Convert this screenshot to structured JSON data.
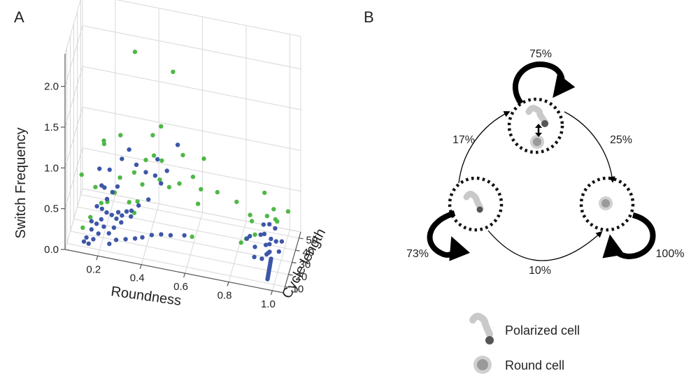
{
  "panel_a": {
    "letter": "A",
    "chart_data": {
      "type": "scatter",
      "dimensions": 3,
      "xlabel": "Roundness",
      "ylabel": "Cycle length",
      "zlabel": "Switch Frequency",
      "xlim": [
        0.05,
        1.05
      ],
      "ylim": [
        5,
        55
      ],
      "zlim": [
        0,
        2.4
      ],
      "x_ticks": [
        "0.2",
        "0.4",
        "0.6",
        "0.8",
        "1.0"
      ],
      "y_ticks": [
        "10",
        "20",
        "30",
        "40",
        "50"
      ],
      "z_ticks": [
        "0.0",
        "0.5",
        "1.0",
        "1.5",
        "2.0"
      ],
      "grid": true,
      "colors": {
        "green": "#4fb848",
        "blue": "#3d56a8"
      },
      "series": [
        {
          "color": "green",
          "points": [
            [
              0.33,
              30,
              2.2
            ],
            [
              0.5,
              33,
              2.0
            ],
            [
              0.11,
              15,
              0.8
            ],
            [
              0.22,
              10,
              1.35
            ],
            [
              0.21,
              17,
              1.2
            ],
            [
              0.28,
              20,
              1.3
            ],
            [
              0.42,
              25,
              1.3
            ],
            [
              0.45,
              30,
              1.35
            ],
            [
              0.43,
              22,
              1.1
            ],
            [
              0.46,
              20,
              0.85
            ],
            [
              0.38,
              20,
              0.75
            ],
            [
              0.33,
              28,
              0.75
            ],
            [
              0.55,
              30,
              1.05
            ],
            [
              0.63,
              40,
              0.9
            ],
            [
              0.55,
              20,
              0.85
            ],
            [
              0.58,
              40,
              0.65
            ],
            [
              0.62,
              38,
              0.55
            ],
            [
              0.7,
              35,
              0.6
            ],
            [
              0.38,
              30,
              0.9
            ],
            [
              0.27,
              25,
              0.7
            ],
            [
              0.32,
              20,
              0.5
            ],
            [
              0.35,
              25,
              0.45
            ],
            [
              0.2,
              15,
              0.5
            ],
            [
              0.17,
              17,
              0.65
            ],
            [
              0.25,
              22,
              0.55
            ],
            [
              0.22,
              20,
              0.45
            ],
            [
              0.5,
              22,
              0.75
            ],
            [
              0.45,
              32,
              0.9
            ],
            [
              0.9,
              45,
              0.55
            ],
            [
              0.95,
              40,
              0.45
            ],
            [
              0.92,
              40,
              0.35
            ],
            [
              0.95,
              45,
              0.25
            ],
            [
              0.85,
              35,
              0.4
            ],
            [
              0.78,
              40,
              0.45
            ],
            [
              0.88,
              30,
              0.25
            ],
            [
              0.84,
              30,
              0.18
            ],
            [
              1.0,
              50,
              0.3
            ],
            [
              0.6,
              25,
              0.15
            ],
            [
              0.82,
              28,
              0.15
            ],
            [
              0.95,
              50,
              0.15
            ],
            [
              0.85,
              40,
              0.25
            ],
            [
              0.6,
              42,
              0.3
            ],
            [
              0.34,
              22,
              0.35
            ],
            [
              0.15,
              15,
              0.3
            ],
            [
              0.12,
              12,
              0.2
            ]
          ]
        },
        {
          "color": "blue",
          "points": [
            [
              0.16,
              12,
              0.2
            ],
            [
              0.18,
              14,
              0.25
            ],
            [
              0.2,
              15,
              0.3
            ],
            [
              0.22,
              18,
              0.35
            ],
            [
              0.19,
              13,
              0.15
            ],
            [
              0.17,
              11,
              0.1
            ],
            [
              0.21,
              16,
              0.2
            ],
            [
              0.24,
              20,
              0.3
            ],
            [
              0.26,
              21,
              0.25
            ],
            [
              0.15,
              10,
              0.05
            ],
            [
              0.23,
              18,
              0.1
            ],
            [
              0.25,
              20,
              0.15
            ],
            [
              0.28,
              22,
              0.2
            ],
            [
              0.3,
              25,
              0.3
            ],
            [
              0.32,
              25,
              0.25
            ],
            [
              0.27,
              20,
              0.35
            ],
            [
              0.2,
              17,
              0.4
            ],
            [
              0.18,
              15,
              0.45
            ],
            [
              0.22,
              19,
              0.5
            ],
            [
              0.24,
              22,
              0.55
            ],
            [
              0.26,
              24,
              0.6
            ],
            [
              0.21,
              18,
              0.65
            ],
            [
              0.2,
              16,
              0.7
            ],
            [
              0.19,
              16,
              0.9
            ],
            [
              0.23,
              20,
              0.85
            ],
            [
              0.28,
              24,
              0.95
            ],
            [
              0.31,
              26,
              1.05
            ],
            [
              0.34,
              28,
              0.85
            ],
            [
              0.38,
              30,
              0.75
            ],
            [
              0.42,
              32,
              0.7
            ],
            [
              0.45,
              30,
              0.65
            ],
            [
              0.4,
              25,
              0.5
            ],
            [
              0.36,
              22,
              0.45
            ],
            [
              0.33,
              20,
              0.4
            ],
            [
              0.29,
              18,
              0.35
            ],
            [
              0.44,
              26,
              1.0
            ],
            [
              0.48,
              28,
              0.85
            ],
            [
              0.14,
              10,
              0.12
            ],
            [
              0.13,
              9,
              0.08
            ],
            [
              0.16,
              12,
              0.3
            ],
            [
              0.38,
              20,
              0.1
            ],
            [
              0.42,
              22,
              0.12
            ],
            [
              0.46,
              24,
              0.12
            ],
            [
              0.5,
              26,
              0.1
            ],
            [
              0.56,
              28,
              0.1
            ],
            [
              0.31,
              16,
              0.1
            ],
            [
              0.35,
              18,
              0.1
            ],
            [
              0.27,
              14,
              0.1
            ],
            [
              0.24,
              13,
              0.05
            ],
            [
              0.52,
              34,
              1.1
            ],
            [
              0.97,
              10,
              0.05
            ],
            [
              0.97,
              11,
              0.06
            ],
            [
              0.97,
              12,
              0.07
            ],
            [
              0.97,
              13,
              0.08
            ],
            [
              0.97,
              14,
              0.09
            ],
            [
              0.97,
              15,
              0.1
            ],
            [
              0.97,
              16,
              0.11
            ],
            [
              0.97,
              17,
              0.12
            ],
            [
              0.97,
              18,
              0.13
            ],
            [
              0.97,
              19,
              0.14
            ],
            [
              0.97,
              20,
              0.15
            ],
            [
              0.96,
              22,
              0.2
            ],
            [
              0.95,
              24,
              0.15
            ],
            [
              0.94,
              26,
              0.1
            ],
            [
              0.95,
              28,
              0.2
            ],
            [
              0.93,
              30,
              0.15
            ],
            [
              0.92,
              32,
              0.25
            ],
            [
              0.9,
              34,
              0.2
            ],
            [
              0.91,
              36,
              0.3
            ],
            [
              0.88,
              30,
              0.1
            ],
            [
              0.86,
              28,
              0.25
            ],
            [
              0.84,
              32,
              0.15
            ],
            [
              0.96,
              26,
              0.3
            ],
            [
              0.98,
              28,
              0.25
            ],
            [
              0.94,
              34,
              0.35
            ],
            [
              0.99,
              30,
              0.1
            ],
            [
              1.0,
              32,
              0.2
            ],
            [
              0.96,
              38,
              0.25
            ],
            [
              0.92,
              25,
              0.05
            ],
            [
              0.89,
              22,
              0.1
            ]
          ]
        }
      ]
    }
  },
  "panel_b": {
    "letter": "B",
    "transitions": [
      {
        "id": "polarized-self",
        "label": "75%"
      },
      {
        "id": "polarized-to-round",
        "label": "25%"
      },
      {
        "id": "mixed-to-polarized",
        "label": "17%"
      },
      {
        "id": "mixed-self",
        "label": "73%"
      },
      {
        "id": "mixed-to-round",
        "label": "10%"
      },
      {
        "id": "round-self",
        "label": "100%"
      }
    ],
    "legend": [
      {
        "icon": "polarized-cell-icon",
        "label": "Polarized cell"
      },
      {
        "icon": "round-cell-icon",
        "label": "Round cell"
      }
    ]
  }
}
